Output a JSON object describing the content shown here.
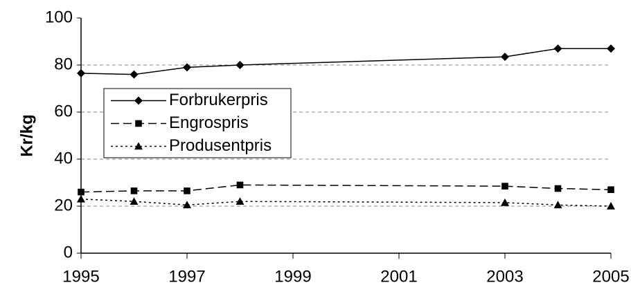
{
  "chart_data": {
    "type": "line",
    "y_label": "Kr/kg",
    "x": [
      1995,
      1996,
      1997,
      1998,
      2003,
      2004,
      2005
    ],
    "series": [
      {
        "name": "Forbrukerpris",
        "color": "#000000",
        "line_style": "solid",
        "marker": "diamond",
        "values": [
          76.5,
          76,
          79,
          80,
          83.5,
          87,
          87
        ]
      },
      {
        "name": "Engrospris",
        "color": "#000000",
        "line_style": "dashed",
        "marker": "square",
        "values": [
          26,
          26.5,
          26.5,
          29,
          28.5,
          27.5,
          27
        ]
      },
      {
        "name": "Produsentpris",
        "color": "#000000",
        "line_style": "dotted",
        "marker": "triangle",
        "values": [
          23,
          22,
          20.5,
          22,
          21.5,
          20.5,
          20
        ]
      }
    ],
    "xlim": [
      1995,
      2005
    ],
    "xticks": [
      1995,
      1997,
      1999,
      2001,
      2003,
      2005
    ],
    "ylim": [
      0,
      100
    ],
    "yticks": [
      0,
      20,
      40,
      60,
      80,
      100
    ],
    "grid": true,
    "legend": "upper left"
  }
}
